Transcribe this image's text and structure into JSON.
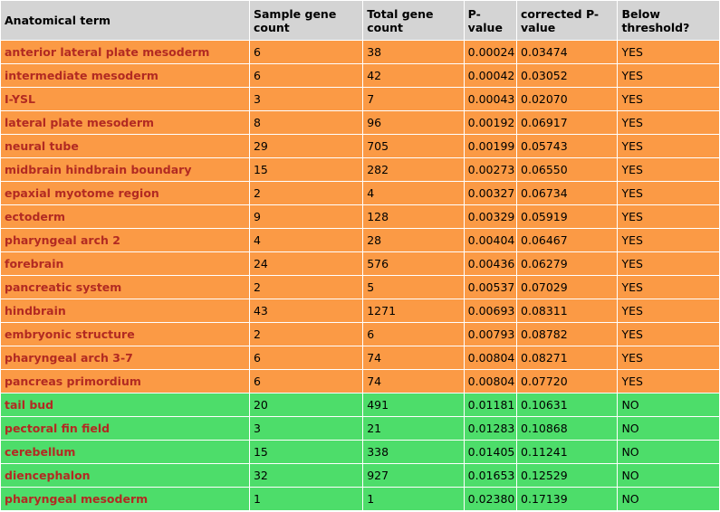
{
  "colors": {
    "header_bg": "#d4d4d4",
    "below_threshold_bg": "#fb9a45",
    "above_threshold_bg": "#4ddd6a",
    "term_text": "#b22a22"
  },
  "table": {
    "headers": [
      "Anatomical term",
      "Sample gene count",
      "Total gene count",
      "P-value",
      "corrected P-value",
      "Below threshold?"
    ],
    "rows": [
      [
        "anterior lateral plate mesoderm",
        "6",
        "38",
        "0.00024",
        "0.03474",
        "YES"
      ],
      [
        "intermediate mesoderm",
        "6",
        "42",
        "0.00042",
        "0.03052",
        "YES"
      ],
      [
        "I-YSL",
        "3",
        "7",
        "0.00043",
        "0.02070",
        "YES"
      ],
      [
        "lateral plate mesoderm",
        "8",
        "96",
        "0.00192",
        "0.06917",
        "YES"
      ],
      [
        "neural tube",
        "29",
        "705",
        "0.00199",
        "0.05743",
        "YES"
      ],
      [
        "midbrain hindbrain boundary",
        "15",
        "282",
        "0.00273",
        "0.06550",
        "YES"
      ],
      [
        "epaxial myotome region",
        "2",
        "4",
        "0.00327",
        "0.06734",
        "YES"
      ],
      [
        "ectoderm",
        "9",
        "128",
        "0.00329",
        "0.05919",
        "YES"
      ],
      [
        "pharyngeal arch 2",
        "4",
        "28",
        "0.00404",
        "0.06467",
        "YES"
      ],
      [
        "forebrain",
        "24",
        "576",
        "0.00436",
        "0.06279",
        "YES"
      ],
      [
        "pancreatic system",
        "2",
        "5",
        "0.00537",
        "0.07029",
        "YES"
      ],
      [
        "hindbrain",
        "43",
        "1271",
        "0.00693",
        "0.08311",
        "YES"
      ],
      [
        "embryonic structure",
        "2",
        "6",
        "0.00793",
        "0.08782",
        "YES"
      ],
      [
        "pharyngeal arch 3-7",
        "6",
        "74",
        "0.00804",
        "0.08271",
        "YES"
      ],
      [
        "pancreas primordium",
        "6",
        "74",
        "0.00804",
        "0.07720",
        "YES"
      ],
      [
        "tail bud",
        "20",
        "491",
        "0.01181",
        "0.10631",
        "NO"
      ],
      [
        "pectoral fin field",
        "3",
        "21",
        "0.01283",
        "0.10868",
        "NO"
      ],
      [
        "cerebellum",
        "15",
        "338",
        "0.01405",
        "0.11241",
        "NO"
      ],
      [
        "diencephalon",
        "32",
        "927",
        "0.01653",
        "0.12529",
        "NO"
      ],
      [
        "pharyngeal mesoderm",
        "1",
        "1",
        "0.02380",
        "0.17139",
        "NO"
      ]
    ]
  }
}
